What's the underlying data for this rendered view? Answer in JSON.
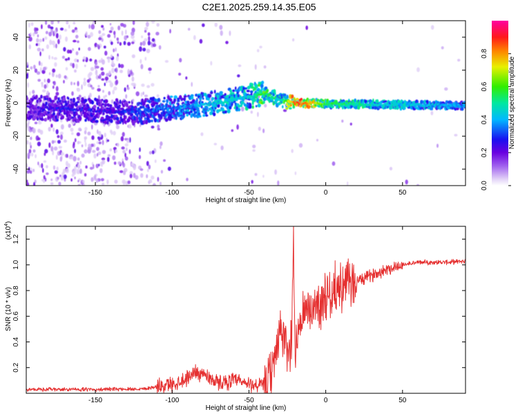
{
  "title": "C2E1.2025.259.14.35.E05",
  "colors": {
    "snr_line": "#e53030",
    "axis": "#000000"
  },
  "chart_data": [
    {
      "type": "heatmap",
      "xlabel": "Height of straight line (km)",
      "ylabel": "Frequency (Hz)",
      "xlim": [
        -195,
        91
      ],
      "ylim": [
        -50,
        50
      ],
      "xticks": [
        -150,
        -100,
        -50,
        0,
        50
      ],
      "xtick_labels": [
        "-150",
        "-100",
        "-50",
        "0",
        "50"
      ],
      "yticks": [
        -40,
        -20,
        0,
        20,
        40
      ],
      "ytick_labels": [
        "-40",
        "-20",
        "0",
        "20",
        "40"
      ],
      "colorbar": {
        "label": "Normalized spectral amplitude",
        "range": [
          0,
          1
        ],
        "ticks": [
          0.0,
          0.2,
          0.4,
          0.6,
          0.8
        ],
        "tick_labels": [
          "0.0",
          "0.2",
          "0.4",
          "0.6",
          "0.8"
        ],
        "colormap": "rainbow (white-lavender-purple-blue-cyan-green-yellow-orange-red-magenta)"
      },
      "ridge": {
        "x": [
          -195,
          -180,
          -160,
          -140,
          -120,
          -100,
          -80,
          -60,
          -50,
          -40,
          -35,
          -30,
          -20,
          -10,
          0,
          20,
          50,
          91
        ],
        "freq": [
          -3,
          -3,
          -4,
          -5,
          -5,
          -3,
          -1,
          2,
          4,
          6,
          4,
          2,
          0,
          0,
          -0.5,
          -0.5,
          -1,
          -1.5
        ],
        "amplitude": [
          0.2,
          0.25,
          0.25,
          0.25,
          0.3,
          0.35,
          0.4,
          0.45,
          0.45,
          0.6,
          0.5,
          0.45,
          0.85,
          0.8,
          0.55,
          0.5,
          0.42,
          0.38
        ]
      }
    },
    {
      "type": "line",
      "xlabel": "Height of straight line (km)",
      "ylabel": "SNR (10 * v/v)",
      "scale_note": "(x10",
      "scale_exp": "4",
      "scale_close": ")",
      "xlim": [
        -195,
        91
      ],
      "ylim": [
        0,
        1.3
      ],
      "xticks": [
        -150,
        -100,
        -50,
        0,
        50
      ],
      "xtick_labels": [
        "-150",
        "-100",
        "-50",
        "0",
        "50"
      ],
      "yticks": [
        0.2,
        0.4,
        0.6,
        0.8,
        1.0,
        1.2
      ],
      "ytick_labels": [
        "0.2",
        "0.4",
        "0.6",
        "0.8",
        "1.0",
        "1.2"
      ],
      "series": [
        {
          "name": "SNR",
          "x": [
            -195,
            -150,
            -120,
            -110,
            -100,
            -90,
            -85,
            -80,
            -75,
            -70,
            -60,
            -50,
            -40,
            -35,
            -32,
            -30,
            -28,
            -26,
            -24,
            -22,
            -21,
            -20,
            -18,
            -15,
            -10,
            -5,
            0,
            5,
            10,
            20,
            30,
            40,
            50,
            60,
            70,
            80,
            91
          ],
          "y": [
            0.03,
            0.03,
            0.035,
            0.05,
            0.07,
            0.12,
            0.17,
            0.15,
            0.12,
            0.08,
            0.1,
            0.07,
            0.06,
            0.15,
            0.38,
            0.5,
            0.45,
            0.35,
            0.3,
            0.5,
            1.25,
            0.3,
            0.5,
            0.6,
            0.65,
            0.7,
            0.75,
            0.8,
            0.83,
            0.87,
            0.92,
            0.97,
            1.0,
            1.02,
            1.02,
            1.02,
            1.03
          ]
        }
      ]
    }
  ]
}
